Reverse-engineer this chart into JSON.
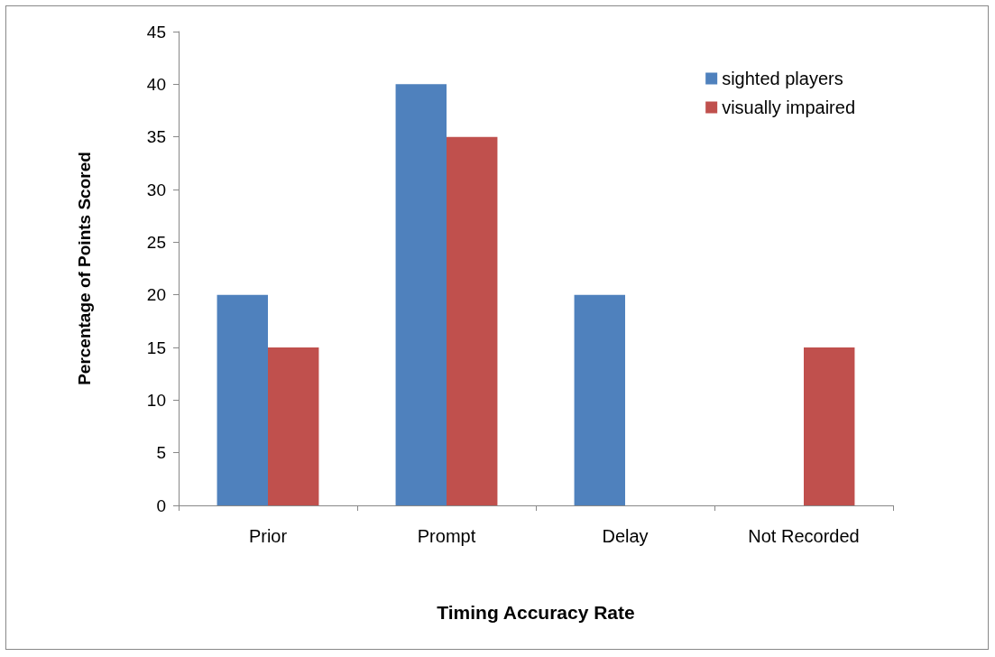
{
  "chart_data": {
    "type": "bar",
    "xlabel": "Timing Accuracy Rate",
    "ylabel": "Percentage of Points Scored",
    "categories": [
      "Prior",
      "Prompt",
      "Delay",
      "Not Recorded"
    ],
    "series": [
      {
        "name": "sighted players",
        "color": "#4f81bd",
        "values": [
          20,
          40,
          20,
          0
        ]
      },
      {
        "name": "visually impaired",
        "color": "#c0504d",
        "values": [
          15,
          35,
          0,
          15
        ]
      }
    ],
    "ylim": [
      0,
      45
    ],
    "yticks": [
      0,
      5,
      10,
      15,
      20,
      25,
      30,
      35,
      40,
      45
    ],
    "legend": "top right"
  }
}
